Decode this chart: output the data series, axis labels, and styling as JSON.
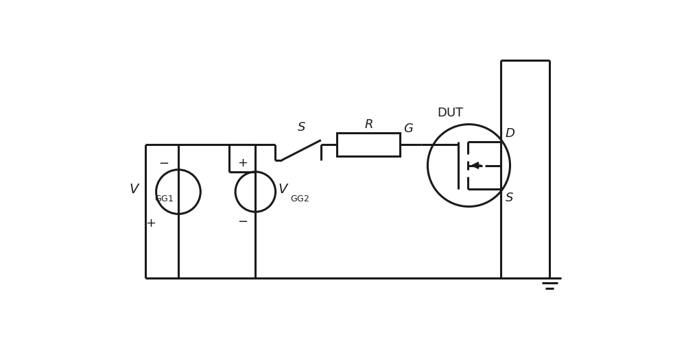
{
  "bg_color": "#ffffff",
  "line_color": "#1a1a1a",
  "line_width": 2.2,
  "fig_width": 10.0,
  "fig_height": 4.92,
  "layout": {
    "yb": 0.42,
    "yt": 2.95,
    "yd": 4.55,
    "xl": 1.1,
    "xv1": 1.72,
    "xmid": 2.68,
    "xv2": 3.18,
    "xstep": 3.55,
    "xsw1": 3.68,
    "xsw2": 4.42,
    "xrl": 4.72,
    "xrr": 5.92,
    "xg": 6.32,
    "xmc": 7.22,
    "xds": 7.82,
    "xrail": 8.75,
    "rv1": 0.42,
    "yv1": 2.05,
    "rv2": 0.38,
    "yv2": 2.05,
    "rmos": 0.78,
    "ymc": 2.55
  }
}
